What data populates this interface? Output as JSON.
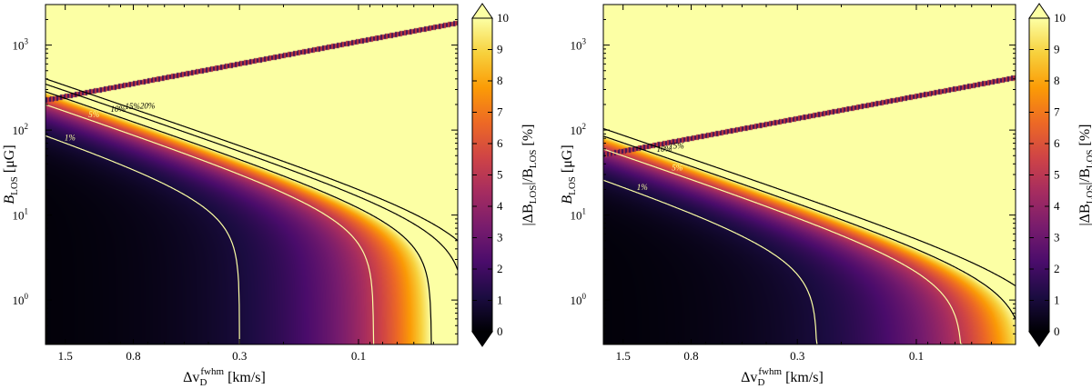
{
  "colors": {
    "background": "#ffffff",
    "colormap_inferno": [
      "#000004",
      "#1b0c41",
      "#4a0c6b",
      "#781c6d",
      "#a52c60",
      "#cf4446",
      "#ed6925",
      "#fb9b06",
      "#f7d13d",
      "#fcffa4"
    ],
    "contour_low": "#fcffa4",
    "contour_high": "#000000"
  },
  "chart_data": [
    {
      "type": "heatmap",
      "panel": "left",
      "xlabel_parts": {
        "main": "Δv",
        "sub": "D",
        "sup": "fwhm",
        "unit": "[km/s]"
      },
      "ylabel_parts": {
        "main": "B",
        "sub": "LOS",
        "unit": "[μG]"
      },
      "x_axis": "reversed log scale, km/s",
      "xlim": [
        1.8,
        0.04
      ],
      "ylim": [
        0.3,
        3000
      ],
      "x_ticks": [
        {
          "value": 1.5,
          "label": "1.5"
        },
        {
          "value": 0.8,
          "label": "0.8"
        },
        {
          "value": 0.3,
          "label": "0.3"
        },
        {
          "value": 0.1,
          "label": "0.1"
        }
      ],
      "y_ticks": [
        {
          "value": 1,
          "label": "10",
          "exp": "0"
        },
        {
          "value": 10,
          "label": "10",
          "exp": "1"
        },
        {
          "value": 100,
          "label": "10",
          "exp": "2"
        },
        {
          "value": 1000,
          "label": "10",
          "exp": "3"
        }
      ],
      "field": {
        "a": 0.3,
        "ref_k": 50,
        "exp_x": 1.3,
        "exp_y": 2,
        "yellow_band": 1100
      },
      "contours": [
        {
          "level": 1,
          "label": "1%"
        },
        {
          "level": 5,
          "label": "5%"
        },
        {
          "level": 10,
          "label": "10%"
        },
        {
          "level": 15,
          "label": "15%"
        },
        {
          "level": 20,
          "label": "20%"
        }
      ],
      "colorbar": {
        "min": 0,
        "max": 10,
        "ticks": [
          "0",
          "1",
          "2",
          "3",
          "4",
          "5",
          "6",
          "7",
          "8",
          "9",
          "10"
        ],
        "label": "|ΔB_LOS|/B_LOS [%]",
        "label_parts": {
          "a": "|ΔB",
          "a_sub": "LOS",
          "b": "|/B",
          "b_sub": "LOS",
          "unit": "[%]"
        }
      }
    },
    {
      "type": "heatmap",
      "panel": "right",
      "xlabel_parts": {
        "main": "Δv",
        "sub": "D",
        "sup": "fwhm",
        "unit": "[km/s]"
      },
      "ylabel_parts": {
        "main": "B",
        "sub": "LOS",
        "unit": "[μG]"
      },
      "x_axis": "reversed log scale, km/s",
      "xlim": [
        1.8,
        0.04
      ],
      "ylim": [
        0.3,
        3000
      ],
      "x_ticks": [
        {
          "value": 1.5,
          "label": "1.5"
        },
        {
          "value": 0.8,
          "label": "0.8"
        },
        {
          "value": 0.3,
          "label": "0.3"
        },
        {
          "value": 0.1,
          "label": "0.1"
        }
      ],
      "y_ticks": [
        {
          "value": 1,
          "label": "10",
          "exp": "0"
        },
        {
          "value": 10,
          "label": "10",
          "exp": "1"
        },
        {
          "value": 100,
          "label": "10",
          "exp": "2"
        },
        {
          "value": 1000,
          "label": "10",
          "exp": "3"
        }
      ],
      "field": {
        "a": 0.25,
        "ref_k": 15,
        "exp_x": 1.2,
        "exp_y": 2,
        "yellow_band": 250
      },
      "contours": [
        {
          "level": 1,
          "label": "1%"
        },
        {
          "level": 5,
          "label": "5%"
        },
        {
          "level": 10,
          "label": "10%"
        },
        {
          "level": 15,
          "label": "15%"
        }
      ],
      "colorbar": {
        "min": 0,
        "max": 10,
        "ticks": [
          "0",
          "1",
          "2",
          "3",
          "4",
          "5",
          "6",
          "7",
          "8",
          "9",
          "10"
        ],
        "label": "|ΔB_LOS|/B_LOS [%]",
        "label_parts": {
          "a": "|ΔB",
          "a_sub": "LOS",
          "b": "|/B",
          "b_sub": "LOS",
          "unit": "[%]"
        }
      }
    }
  ]
}
